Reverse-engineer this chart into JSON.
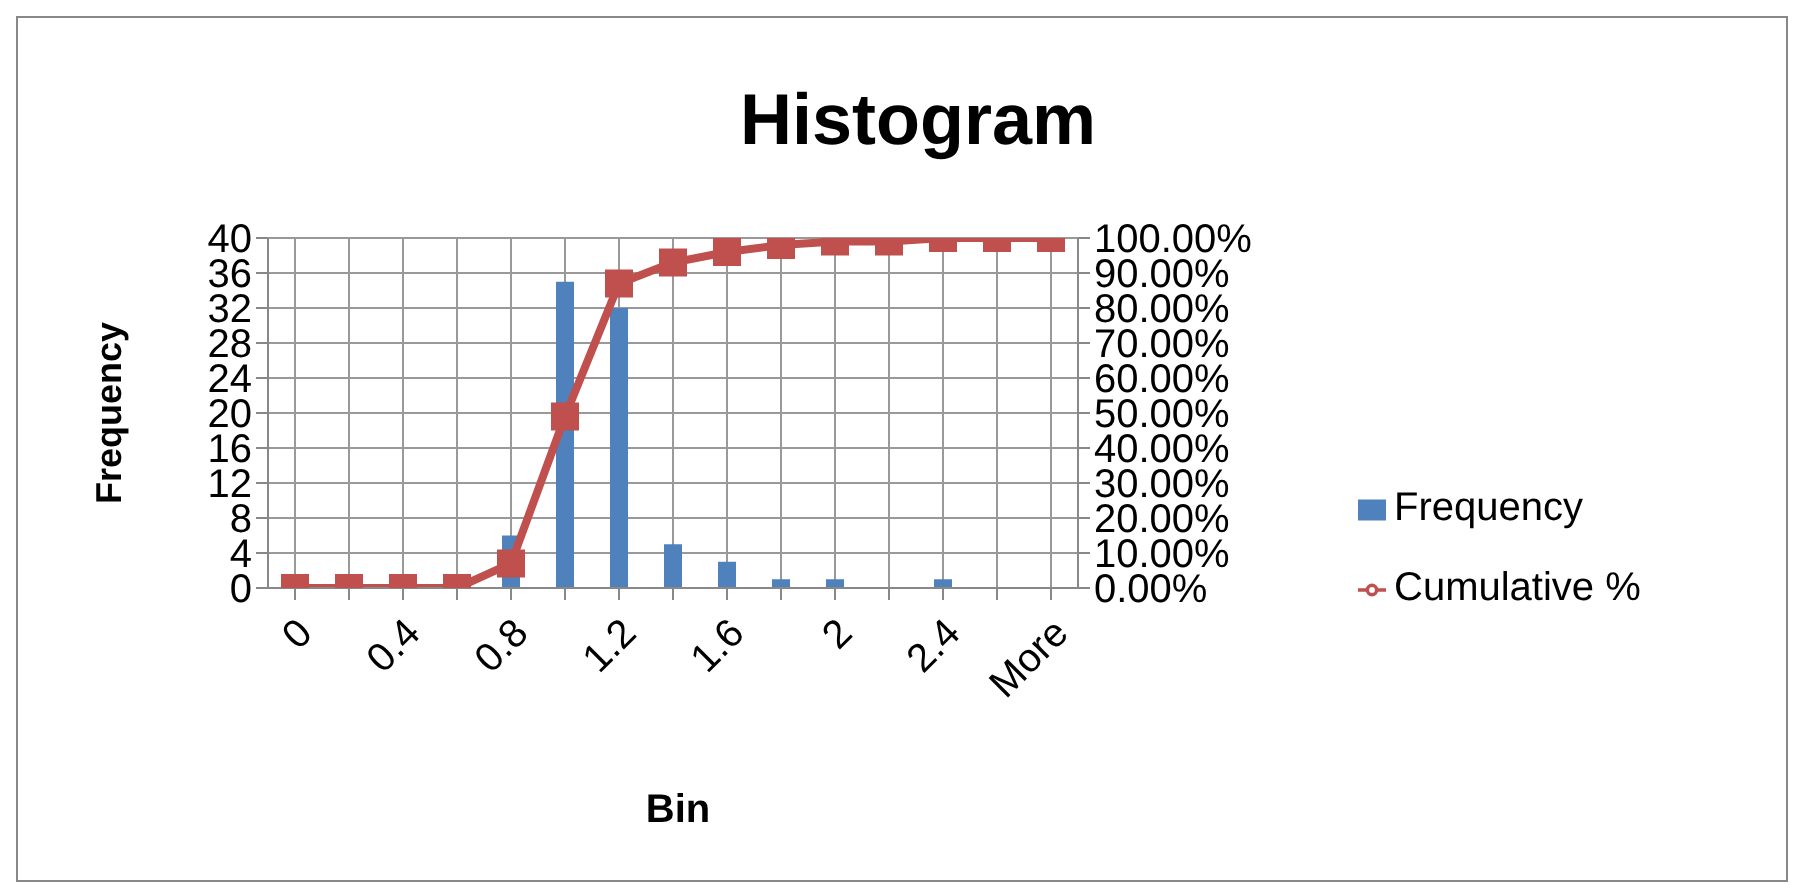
{
  "chart_data": {
    "type": "bar",
    "title": "Histogram",
    "xlabel": "Bin",
    "ylabel": "Frequency",
    "categories": [
      "0",
      null,
      "0.4",
      null,
      "0.8",
      null,
      "1.2",
      null,
      "1.6",
      null,
      "2",
      null,
      "2.4",
      null,
      "More"
    ],
    "series": [
      {
        "name": "Frequency",
        "color": "#4f81bd",
        "values": [
          0,
          0,
          0,
          0,
          6,
          35,
          32,
          5,
          3,
          1,
          1,
          0,
          1,
          0,
          0
        ]
      },
      {
        "name": "Cumulative %",
        "type": "line",
        "axis": "y2",
        "color": "#c0504d",
        "marker": "square",
        "values": [
          0,
          0,
          0,
          0,
          7,
          49,
          87,
          93,
          96,
          98,
          99,
          99,
          100,
          100,
          100
        ]
      }
    ],
    "ylim": [
      0,
      40
    ],
    "yticks": [
      0,
      4,
      8,
      12,
      16,
      20,
      24,
      28,
      32,
      36,
      40
    ],
    "y2lim": [
      0,
      100
    ],
    "y2ticks": [
      {
        "value": 0,
        "label": "0.00%"
      },
      {
        "value": 10,
        "label": "10.00%"
      },
      {
        "value": 20,
        "label": "20.00%"
      },
      {
        "value": 30,
        "label": "30.00%"
      },
      {
        "value": 40,
        "label": "40.00%"
      },
      {
        "value": 50,
        "label": "50.00%"
      },
      {
        "value": 60,
        "label": "60.00%"
      },
      {
        "value": 70,
        "label": "70.00%"
      },
      {
        "value": 80,
        "label": "80.00%"
      },
      {
        "value": 90,
        "label": "90.00%"
      },
      {
        "value": 100,
        "label": "100.00%"
      }
    ],
    "grid": true,
    "legend": "right"
  }
}
